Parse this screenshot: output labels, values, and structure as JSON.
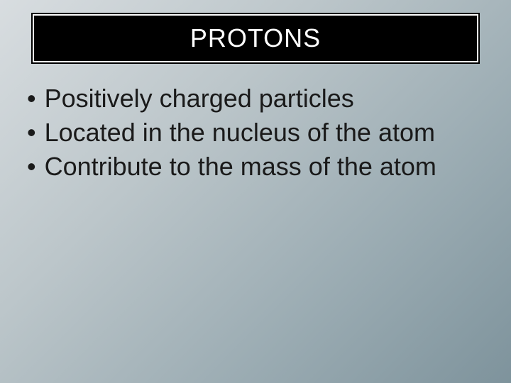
{
  "slide": {
    "title": "PROTONS",
    "bullets": [
      "Positively charged particles",
      "Located in the nucleus of the atom",
      "Contribute to the mass of the atom"
    ],
    "background_gradient_start": "#d8dde0",
    "background_gradient_end": "#7e939c",
    "title_bg": "#000000",
    "title_color": "#ffffff",
    "text_color": "#1a1a1a",
    "title_fontsize": 36,
    "body_fontsize": 36
  }
}
